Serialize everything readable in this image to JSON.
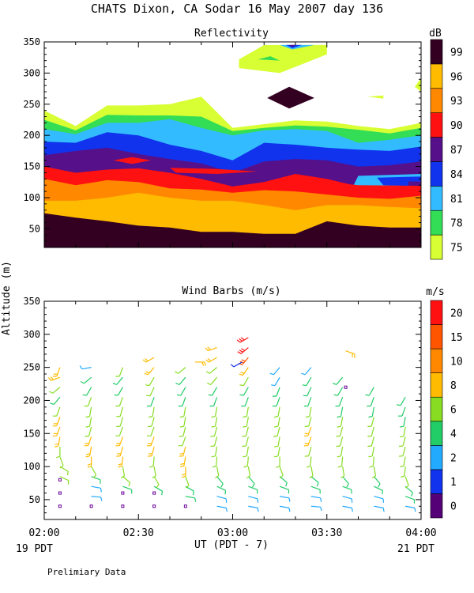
{
  "page": {
    "title": "CHATS Dixon, CA  Sodar  16 May 2007  day 136",
    "ylabel": "Altitude (m)",
    "xlabel": "UT  (PDT - 7)",
    "start_label": "19 PDT",
    "end_label": "21 PDT",
    "footer": "Prelimiary Data"
  },
  "chart_data": [
    {
      "type": "heatmap",
      "title": "Reflectivity",
      "colorbar_label": "dB",
      "x_ticks": [
        "02:00",
        "02:30",
        "03:00",
        "03:30",
        "04:00"
      ],
      "y_ticks": [
        50,
        100,
        150,
        200,
        250,
        300,
        350
      ],
      "ylim": [
        20,
        350
      ],
      "xlim_minutes": [
        0,
        120
      ],
      "levels": [
        75,
        78,
        81,
        84,
        87,
        90,
        93,
        96,
        99
      ],
      "level_colors": [
        "#d7ff33",
        "#33dd55",
        "#33bbff",
        "#1133ee",
        "#55108a",
        "#ff1111",
        "#ff8800",
        "#ffbb00",
        "#330022"
      ],
      "x_minutes": [
        0,
        10,
        20,
        30,
        40,
        50,
        60,
        70,
        80,
        90,
        100,
        110,
        120
      ],
      "bands": [
        {
          "level": 75,
          "upper": [
            240,
            215,
            248,
            248,
            250,
            262,
            212,
            218,
            224,
            222,
            215,
            210,
            220
          ]
        },
        {
          "level": 78,
          "upper": [
            225,
            208,
            233,
            232,
            232,
            230,
            207,
            212,
            216,
            214,
            209,
            203,
            212
          ]
        },
        {
          "level": 81,
          "upper": [
            210,
            202,
            220,
            220,
            226,
            212,
            200,
            208,
            210,
            207,
            188,
            193,
            200
          ]
        },
        {
          "level": 84,
          "upper": [
            190,
            188,
            205,
            200,
            185,
            175,
            160,
            188,
            185,
            180,
            177,
            175,
            182
          ]
        },
        {
          "level": 87,
          "upper": [
            168,
            175,
            180,
            170,
            162,
            155,
            140,
            158,
            162,
            160,
            150,
            152,
            158
          ]
        },
        {
          "level": 90,
          "upper": [
            150,
            140,
            145,
            147,
            140,
            130,
            118,
            125,
            138,
            130,
            118,
            112,
            115
          ]
        },
        {
          "level": 93,
          "upper": [
            130,
            120,
            128,
            125,
            115,
            113,
            108,
            112,
            110,
            105,
            100,
            98,
            103
          ]
        },
        {
          "level": 96,
          "upper": [
            95,
            95,
            100,
            108,
            100,
            95,
            95,
            88,
            80,
            88,
            88,
            85,
            83
          ]
        },
        {
          "level": 99,
          "upper": [
            75,
            68,
            62,
            55,
            52,
            45,
            45,
            42,
            42,
            62,
            55,
            52,
            52
          ]
        }
      ],
      "patches": [
        {
          "level": 81,
          "points": [
            [
              100,
              135
            ],
            [
              120,
              138
            ],
            [
              120,
              112
            ],
            [
              98,
              115
            ]
          ]
        },
        {
          "level": 84,
          "points": [
            [
              106,
              132
            ],
            [
              120,
              134
            ],
            [
              120,
              118
            ],
            [
              108,
              120
            ]
          ]
        },
        {
          "level": 87,
          "points": [
            [
              116,
              126
            ],
            [
              120,
              126
            ],
            [
              120,
              112
            ],
            [
              116,
              114
            ]
          ]
        },
        {
          "level": 90,
          "points": [
            [
              22,
              160
            ],
            [
              28,
              165
            ],
            [
              34,
              160
            ],
            [
              28,
              154
            ]
          ]
        },
        {
          "level": 90,
          "points": [
            [
              40,
              148
            ],
            [
              55,
              146
            ],
            [
              68,
              142
            ],
            [
              55,
              138
            ],
            [
              42,
              140
            ]
          ]
        },
        {
          "level": 90,
          "points": [
            [
              90,
              125
            ],
            [
              100,
              120
            ],
            [
              120,
              119
            ],
            [
              120,
              105
            ],
            [
              98,
              112
            ]
          ]
        },
        {
          "level": 99,
          "points": [
            [
              71,
              260
            ],
            [
              78,
              278
            ],
            [
              86,
              260
            ],
            [
              78,
              243
            ]
          ]
        },
        {
          "level": 75,
          "points": [
            [
              62,
              322
            ],
            [
              70,
              345
            ],
            [
              90,
              345
            ],
            [
              90,
              330
            ],
            [
              75,
              300
            ],
            [
              62,
              308
            ]
          ]
        },
        {
          "level": 78,
          "points": [
            [
              68,
              322
            ],
            [
              72,
              327
            ],
            [
              75,
              320
            ]
          ]
        },
        {
          "level": 81,
          "points": [
            [
              75,
              345
            ],
            [
              79,
              338
            ],
            [
              86,
              345
            ]
          ]
        },
        {
          "level": 84,
          "points": [
            [
              77,
              345
            ],
            [
              79,
              340
            ],
            [
              82,
              345
            ]
          ]
        },
        {
          "level": 87,
          "points": [
            [
              78,
              345
            ],
            [
              79,
              342
            ],
            [
              80,
              345
            ]
          ]
        },
        {
          "level": 75,
          "points": [
            [
              118,
              278
            ],
            [
              120,
              292
            ],
            [
              120,
              270
            ]
          ]
        },
        {
          "level": 75,
          "points": [
            [
              103,
              262
            ],
            [
              108,
              264
            ],
            [
              108,
              259
            ]
          ]
        }
      ]
    },
    {
      "type": "scatter",
      "title": "Wind Barbs (m/s)",
      "colorbar_label": "m/s",
      "x_ticks": [
        "02:00",
        "02:30",
        "03:00",
        "03:30",
        "04:00"
      ],
      "y_ticks": [
        50,
        100,
        150,
        200,
        250,
        300,
        350
      ],
      "ylim": [
        20,
        350
      ],
      "xlim_minutes": [
        0,
        120
      ],
      "levels": [
        0,
        1,
        2,
        4,
        6,
        8,
        10,
        15,
        20
      ],
      "level_colors": [
        "#550077",
        "#1133ee",
        "#22aaff",
        "#22cc66",
        "#88dd22",
        "#ffbb00",
        "#ff8800",
        "#ff5500",
        "#ff1111"
      ],
      "profiles": [
        {
          "x": 5,
          "calm_to": 80,
          "speeds": [
            4,
            6,
            6,
            7,
            7,
            7,
            7,
            8,
            8,
            8,
            6,
            5,
            6,
            8,
            9
          ],
          "directions": [
            95,
            100,
            110,
            115,
            120,
            160,
            180,
            190,
            200,
            200,
            200,
            220,
            230,
            250,
            200
          ]
        },
        {
          "x": 15,
          "calm_to": 40,
          "speeds": [
            2,
            3,
            3,
            5,
            7,
            8,
            8,
            8,
            7,
            7,
            7,
            6,
            5,
            4,
            3
          ],
          "directions": [
            90,
            95,
            100,
            110,
            150,
            180,
            190,
            200,
            195,
            190,
            190,
            200,
            210,
            230,
            260
          ]
        },
        {
          "x": 25,
          "calm_to": 60,
          "speeds": [
            3,
            3,
            4,
            6,
            7,
            8,
            8,
            8,
            7,
            7,
            6,
            6,
            5,
            5,
            6
          ],
          "directions": [
            100,
            105,
            110,
            130,
            170,
            185,
            195,
            200,
            200,
            195,
            195,
            200,
            210,
            220,
            200
          ]
        },
        {
          "x": 35,
          "calm_to": 60,
          "speeds": [
            3,
            4,
            5,
            6,
            7,
            7,
            8,
            8,
            7,
            6,
            6,
            5,
            6,
            7,
            8,
            9
          ],
          "directions": [
            90,
            100,
            120,
            150,
            170,
            185,
            195,
            200,
            200,
            195,
            190,
            200,
            205,
            210,
            220,
            240
          ]
        },
        {
          "x": 45,
          "calm_to": 40,
          "speeds": [
            3,
            4,
            5,
            7,
            8,
            8,
            8,
            7,
            7,
            6,
            6,
            5,
            5,
            5,
            6
          ],
          "directions": [
            95,
            100,
            120,
            160,
            180,
            190,
            195,
            200,
            195,
            190,
            190,
            200,
            210,
            220,
            230
          ]
        },
        {
          "x": 55,
          "calm_to": 0,
          "speeds": [
            3,
            3,
            4,
            5,
            6,
            7,
            7,
            6,
            6,
            6,
            6,
            5,
            5,
            6,
            7,
            8,
            9
          ],
          "directions": [
            100,
            105,
            115,
            140,
            170,
            185,
            190,
            195,
            195,
            190,
            190,
            200,
            210,
            220,
            230,
            240,
            250
          ]
        },
        {
          "x": 65,
          "calm_to": 0,
          "speeds": [
            3,
            3,
            4,
            5,
            6,
            7,
            7,
            7,
            6,
            6,
            6,
            5,
            5,
            6,
            9,
            15,
            22,
            22
          ],
          "directions": [
            100,
            105,
            110,
            140,
            170,
            185,
            190,
            195,
            195,
            190,
            190,
            200,
            210,
            210,
            215,
            220,
            230,
            240
          ]
        },
        {
          "x": 75,
          "calm_to": 0,
          "speeds": [
            3,
            3,
            4,
            5,
            6,
            7,
            7,
            7,
            7,
            6,
            6,
            5,
            4,
            3,
            3
          ],
          "directions": [
            100,
            100,
            110,
            130,
            160,
            180,
            190,
            190,
            195,
            190,
            190,
            200,
            200,
            210,
            220
          ]
        },
        {
          "x": 85,
          "calm_to": 0,
          "speeds": [
            3,
            3,
            4,
            5,
            6,
            7,
            7,
            8,
            8,
            7,
            6,
            5,
            4,
            4,
            3
          ],
          "directions": [
            95,
            100,
            110,
            130,
            170,
            185,
            195,
            200,
            200,
            195,
            190,
            200,
            205,
            210,
            220
          ]
        },
        {
          "x": 95,
          "calm_to": 0,
          "speeds": [
            3,
            3,
            4,
            5,
            6,
            6,
            7,
            7,
            6,
            6,
            5,
            5,
            4,
            4
          ],
          "directions": [
            100,
            105,
            110,
            140,
            170,
            185,
            190,
            195,
            195,
            190,
            190,
            200,
            210,
            220
          ]
        },
        {
          "x": 105,
          "calm_to": 0,
          "speeds": [
            3,
            3,
            4,
            5,
            6,
            6,
            7,
            7,
            6,
            6,
            5,
            5,
            4
          ],
          "directions": [
            100,
            105,
            115,
            140,
            170,
            185,
            190,
            195,
            195,
            195,
            190,
            200,
            210
          ]
        },
        {
          "x": 115,
          "calm_to": 0,
          "speeds": [
            3,
            4,
            5,
            6,
            7,
            7,
            7,
            6,
            6,
            5,
            5,
            4
          ],
          "directions": [
            100,
            110,
            130,
            160,
            185,
            190,
            195,
            195,
            190,
            190,
            200,
            210
          ]
        }
      ],
      "upper_barbs": [
        {
          "x": 48,
          "y": 258,
          "speed": 8,
          "direction": 90
        },
        {
          "x": 63,
          "y": 258,
          "speed": 1,
          "direction": 240
        },
        {
          "x": 96,
          "y": 275,
          "speed": 8,
          "direction": 110
        },
        {
          "x": 96,
          "y": 220,
          "speed": 0,
          "direction": 0
        }
      ]
    }
  ]
}
